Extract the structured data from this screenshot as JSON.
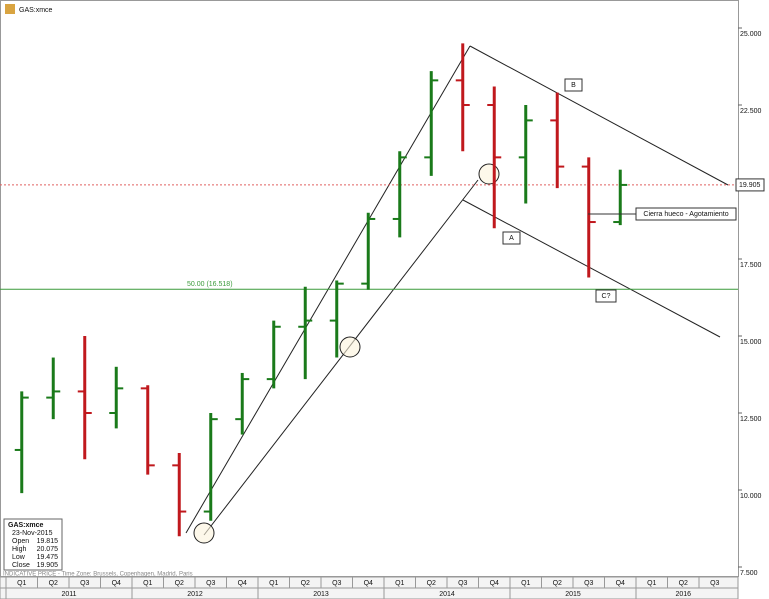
{
  "chart_data": {
    "type": "ohlc",
    "title": "GAS:xmce",
    "categories": [
      "Q1",
      "Q2",
      "Q3",
      "Q4",
      "Q1",
      "Q2",
      "Q3",
      "Q4",
      "Q1",
      "Q2",
      "Q3",
      "Q4",
      "Q1",
      "Q2",
      "Q3",
      "Q4",
      "Q1",
      "Q2",
      "Q3",
      "Q4",
      "Q1",
      "Q2",
      "Q3"
    ],
    "years": [
      "2011",
      "2012",
      "2013",
      "2014",
      "2015",
      "2016"
    ],
    "open": [
      11.3,
      13.0,
      13.2,
      12.5,
      13.3,
      10.8,
      9.3,
      12.3,
      13.6,
      15.3,
      15.5,
      16.7,
      18.8,
      20.8,
      23.3,
      22.5,
      20.8,
      22.0,
      20.5,
      18.7,
      null,
      null,
      null
    ],
    "high": [
      13.2,
      14.3,
      15.0,
      14.0,
      13.4,
      11.2,
      12.5,
      13.8,
      15.5,
      16.6,
      16.8,
      19.0,
      21.0,
      23.6,
      24.5,
      23.1,
      22.5,
      22.9,
      20.8,
      20.4,
      null,
      null,
      null
    ],
    "low": [
      9.9,
      12.3,
      11.0,
      12.0,
      10.5,
      8.5,
      9.0,
      11.8,
      13.3,
      13.6,
      14.3,
      16.5,
      18.2,
      20.2,
      21.0,
      18.5,
      19.3,
      19.8,
      16.9,
      18.6,
      null,
      null,
      null
    ],
    "close": [
      13.0,
      13.2,
      12.5,
      13.3,
      10.8,
      9.3,
      12.3,
      13.6,
      15.3,
      15.5,
      16.7,
      18.8,
      20.8,
      23.3,
      22.5,
      20.8,
      22.0,
      20.5,
      18.7,
      19.905,
      null,
      null,
      null
    ],
    "up_color": "#1a7a1a",
    "down_color": "#c0181d",
    "ylim": [
      7.175,
      25.909
    ],
    "yticks": [
      {
        "value": 7.5,
        "label": "7.500"
      },
      {
        "value": 10,
        "label": "10.000"
      },
      {
        "value": 12.5,
        "label": "12.500"
      },
      {
        "value": 15,
        "label": "15.000"
      },
      {
        "value": 17.5,
        "label": "17.500"
      },
      {
        "value": 20,
        "label": "20.000"
      },
      {
        "value": 22.5,
        "label": "22.500"
      },
      {
        "value": 25,
        "label": "25.000"
      }
    ],
    "last_price": {
      "value": 19.905,
      "label": "19.905",
      "color": "#e06060"
    },
    "fib_level": {
      "value": 16.518,
      "label": "50.00 (16.518)",
      "color": "#3a9a3a"
    },
    "annotations": [
      "B",
      "A",
      "C?",
      "Cierra hueco - Agotamiento"
    ],
    "info_box": {
      "title": "GAS:xmce",
      "date": "23-Nov-2015",
      "fields": [
        {
          "label": "Open",
          "value": 19.815
        },
        {
          "label": "High",
          "value": 20.075
        },
        {
          "label": "Low",
          "value": 19.475
        },
        {
          "label": "Close",
          "value": 19.905
        }
      ]
    },
    "footer": "INDICATIVE PRICE - Time Zone: Brussels, Copenhagen, Madrid, Paris"
  }
}
